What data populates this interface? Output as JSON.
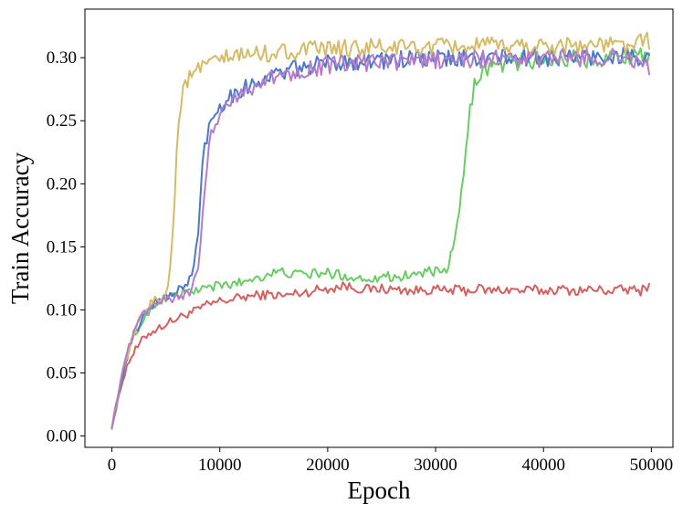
{
  "chart_data": {
    "type": "line",
    "title": "",
    "xlabel": "Epoch",
    "ylabel": "Train Accuracy",
    "xlim": [
      -2500,
      52000
    ],
    "ylim": [
      -0.009,
      0.3385
    ],
    "xticks": [
      0,
      10000,
      20000,
      30000,
      40000,
      50000
    ],
    "xtick_labels": [
      "0",
      "10000",
      "20000",
      "30000",
      "40000",
      "50000"
    ],
    "yticks": [
      0.0,
      0.05,
      0.1,
      0.15,
      0.2,
      0.25,
      0.3
    ],
    "ytick_labels": [
      "0.00",
      "0.05",
      "0.10",
      "0.15",
      "0.20",
      "0.25",
      "0.30"
    ],
    "grid": false,
    "legend": "none",
    "series": [
      {
        "color": "#d65f5f",
        "x": [
          0,
          500,
          1000,
          1500,
          2000,
          2500,
          3000,
          3500,
          4000,
          5000,
          6000,
          7000,
          8000,
          8500,
          9000,
          10000,
          11000,
          12000,
          13000,
          14000,
          15000,
          16000,
          17000,
          18000,
          19000,
          20000,
          21000,
          21500,
          22000,
          23000,
          24000,
          25000,
          26000,
          27000,
          28000,
          29000,
          30000,
          31000,
          32000,
          33000,
          34000,
          35000,
          36000,
          37000,
          38000,
          39000,
          40000,
          41000,
          42000,
          43000,
          44000,
          45000,
          46000,
          47000,
          48000,
          49000,
          49800
        ],
        "y": [
          0.008,
          0.025,
          0.045,
          0.058,
          0.066,
          0.072,
          0.078,
          0.082,
          0.084,
          0.089,
          0.093,
          0.097,
          0.1,
          0.103,
          0.104,
          0.107,
          0.108,
          0.11,
          0.111,
          0.112,
          0.112,
          0.111,
          0.113,
          0.114,
          0.116,
          0.117,
          0.118,
          0.12,
          0.118,
          0.117,
          0.116,
          0.117,
          0.116,
          0.116,
          0.115,
          0.116,
          0.116,
          0.115,
          0.116,
          0.115,
          0.117,
          0.115,
          0.116,
          0.116,
          0.115,
          0.116,
          0.115,
          0.116,
          0.116,
          0.115,
          0.116,
          0.116,
          0.115,
          0.116,
          0.116,
          0.115,
          0.12
        ]
      },
      {
        "color": "#6acc64",
        "x": [
          0,
          500,
          1000,
          1500,
          2000,
          2500,
          3000,
          4000,
          5000,
          6000,
          7000,
          8000,
          9000,
          10000,
          11000,
          12000,
          13000,
          14000,
          15000,
          16000,
          17000,
          18000,
          19000,
          20000,
          21000,
          22000,
          23000,
          24000,
          25000,
          26000,
          27000,
          28000,
          29000,
          30000,
          30500,
          31000,
          31500,
          32000,
          32500,
          33000,
          33300,
          33600,
          34000,
          34500,
          35000,
          36000,
          37000,
          38000,
          39000,
          40000,
          41000,
          42000,
          43000,
          44000,
          45000,
          46000,
          47000,
          48000,
          49000,
          49800
        ],
        "y": [
          0.008,
          0.03,
          0.05,
          0.065,
          0.078,
          0.085,
          0.095,
          0.105,
          0.11,
          0.112,
          0.114,
          0.116,
          0.118,
          0.119,
          0.12,
          0.122,
          0.125,
          0.127,
          0.129,
          0.13,
          0.128,
          0.128,
          0.129,
          0.129,
          0.128,
          0.126,
          0.125,
          0.125,
          0.127,
          0.126,
          0.127,
          0.128,
          0.13,
          0.13,
          0.128,
          0.131,
          0.145,
          0.165,
          0.2,
          0.24,
          0.265,
          0.278,
          0.287,
          0.29,
          0.292,
          0.295,
          0.296,
          0.297,
          0.298,
          0.298,
          0.299,
          0.299,
          0.3,
          0.299,
          0.3,
          0.3,
          0.301,
          0.302,
          0.305,
          0.3
        ]
      },
      {
        "color": "#4878d0",
        "x": [
          0,
          500,
          1000,
          1500,
          2000,
          2500,
          3000,
          4000,
          5000,
          6000,
          7000,
          7500,
          8000,
          8300,
          8600,
          9000,
          9500,
          10000,
          11000,
          12000,
          13000,
          14000,
          15000,
          16000,
          17000,
          18000,
          19000,
          20000,
          22000,
          24000,
          26000,
          28000,
          30000,
          32000,
          34000,
          36000,
          38000,
          40000,
          42000,
          44000,
          46000,
          48000,
          49800
        ],
        "y": [
          0.008,
          0.028,
          0.048,
          0.065,
          0.078,
          0.088,
          0.097,
          0.106,
          0.11,
          0.115,
          0.12,
          0.13,
          0.16,
          0.205,
          0.23,
          0.245,
          0.255,
          0.262,
          0.27,
          0.275,
          0.279,
          0.283,
          0.286,
          0.289,
          0.291,
          0.293,
          0.294,
          0.296,
          0.297,
          0.298,
          0.298,
          0.299,
          0.299,
          0.299,
          0.3,
          0.3,
          0.3,
          0.3,
          0.301,
          0.3,
          0.301,
          0.302,
          0.296
        ]
      },
      {
        "color": "#d5bb67",
        "x": [
          0,
          500,
          1000,
          1500,
          2000,
          2500,
          3000,
          4000,
          5000,
          5500,
          5800,
          6000,
          6300,
          6600,
          7000,
          8000,
          9000,
          10000,
          11000,
          12000,
          13000,
          14000,
          15000,
          16000,
          17000,
          18000,
          19000,
          20000,
          22000,
          24000,
          26000,
          28000,
          30000,
          32000,
          34000,
          36000,
          38000,
          40000,
          42000,
          44000,
          46000,
          48000,
          49800
        ],
        "y": [
          0.007,
          0.03,
          0.05,
          0.065,
          0.08,
          0.09,
          0.1,
          0.108,
          0.112,
          0.14,
          0.185,
          0.225,
          0.26,
          0.275,
          0.282,
          0.29,
          0.295,
          0.298,
          0.3,
          0.302,
          0.303,
          0.303,
          0.304,
          0.305,
          0.305,
          0.306,
          0.306,
          0.307,
          0.307,
          0.308,
          0.308,
          0.308,
          0.308,
          0.309,
          0.309,
          0.309,
          0.31,
          0.309,
          0.31,
          0.31,
          0.31,
          0.31,
          0.313
        ]
      },
      {
        "color": "#b47cc7",
        "x": [
          0,
          500,
          1000,
          1500,
          2000,
          2500,
          3000,
          4000,
          5000,
          6000,
          7000,
          7500,
          8000,
          8500,
          8800,
          9100,
          9500,
          10000,
          11000,
          12000,
          13000,
          14000,
          15000,
          16000,
          17000,
          18000,
          19000,
          20000,
          22000,
          24000,
          26000,
          28000,
          30000,
          32000,
          34000,
          36000,
          38000,
          40000,
          42000,
          44000,
          46000,
          48000,
          49800
        ],
        "y": [
          0.008,
          0.03,
          0.05,
          0.068,
          0.08,
          0.09,
          0.098,
          0.104,
          0.108,
          0.11,
          0.113,
          0.118,
          0.135,
          0.18,
          0.215,
          0.235,
          0.248,
          0.257,
          0.266,
          0.272,
          0.277,
          0.281,
          0.284,
          0.287,
          0.289,
          0.291,
          0.292,
          0.294,
          0.295,
          0.296,
          0.297,
          0.297,
          0.298,
          0.298,
          0.299,
          0.299,
          0.299,
          0.299,
          0.3,
          0.3,
          0.3,
          0.301,
          0.29
        ]
      }
    ]
  }
}
